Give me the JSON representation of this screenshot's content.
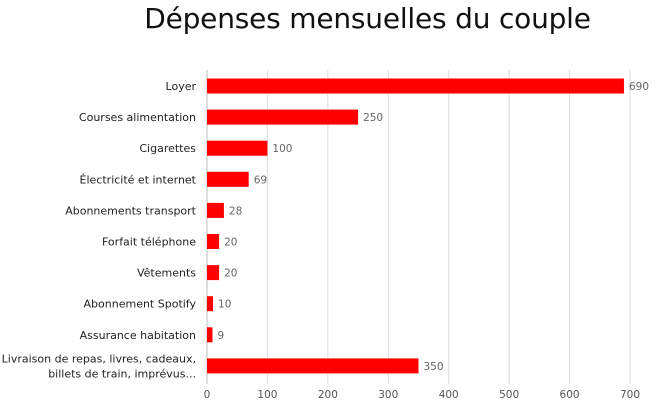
{
  "chart_data": {
    "type": "bar",
    "orientation": "horizontal",
    "title": "Dépenses mensuelles du couple",
    "xlabel": "",
    "ylabel": "",
    "categories": [
      [
        "Loyer"
      ],
      [
        "Courses alimentation"
      ],
      [
        "Cigarettes"
      ],
      [
        "Électricité et internet"
      ],
      [
        "Abonnements transport"
      ],
      [
        "Forfait téléphone"
      ],
      [
        "Vêtements"
      ],
      [
        "Abonnement Spotify"
      ],
      [
        "Assurance habitation"
      ],
      [
        "Livraison de repas, livres, cadeaux,",
        "billets de train, imprévus..."
      ]
    ],
    "values": [
      690,
      250,
      100,
      69,
      28,
      20,
      20,
      10,
      9,
      350
    ],
    "xlim": [
      0,
      700
    ],
    "xticks": [
      0,
      100,
      200,
      300,
      400,
      500,
      600,
      700
    ],
    "grid": "vertical",
    "legend": "none",
    "bar_color": "#ff0000",
    "grid_color": "#dddddd"
  }
}
